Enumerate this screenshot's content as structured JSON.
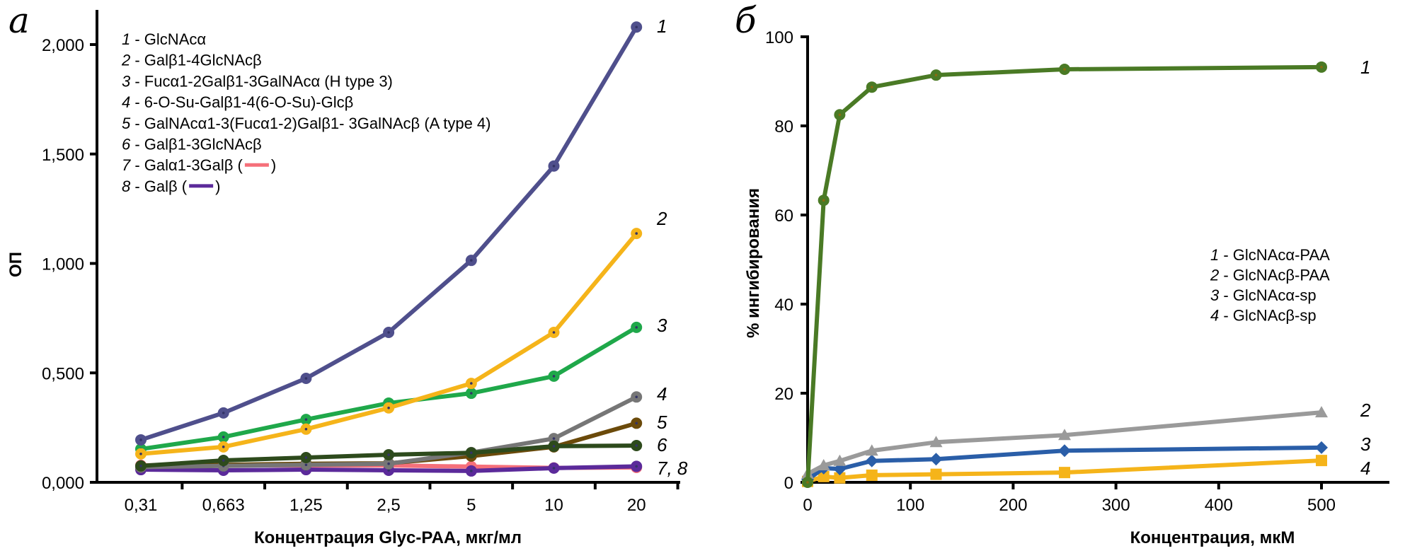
{
  "chart_data": [
    {
      "panel": "а",
      "type": "line",
      "title": "",
      "xlabel": "Концентрация Glyc-PAA, мкг/мл",
      "ylabel": "ОП",
      "categories": [
        "0,31",
        "0,663",
        "1,25",
        "2,5",
        "5",
        "10",
        "20"
      ],
      "ylim": [
        0,
        2.0
      ],
      "yticks": [
        0,
        0.5,
        1.0,
        1.5,
        2.0
      ],
      "ytick_labels": [
        "0,000",
        "0,500",
        "1,000",
        "1,500",
        "2,000"
      ],
      "grid": false,
      "legend_position": "top-left",
      "series": [
        {
          "id": "1",
          "name": "GlcNAcα",
          "color": "#4f4f8c",
          "values": [
            0.194,
            0.317,
            0.475,
            0.685,
            1.014,
            1.445,
            2.08
          ]
        },
        {
          "id": "2",
          "name": "Galβ1-4GlcNAcβ",
          "color": "#f5b41a",
          "values": [
            0.13,
            0.162,
            0.243,
            0.34,
            0.452,
            0.685,
            1.137
          ]
        },
        {
          "id": "3",
          "name": "Fucα1-2Galβ1-3GalNAcα (H type 3)",
          "color": "#1fa84a",
          "values": [
            0.152,
            0.207,
            0.287,
            0.362,
            0.407,
            0.485,
            0.708
          ]
        },
        {
          "id": "4",
          "name": "6-O-Su-Galβ1-4(6-O-Su)-Glcβ",
          "color": "#767676",
          "values": [
            0.07,
            0.075,
            0.08,
            0.085,
            0.136,
            0.2,
            0.39
          ]
        },
        {
          "id": "5",
          "name": "GalNAcα1-3(Fucα1-2)Galβ1- 3GalNAcβ (A type 4)",
          "color": "#6b4a0a",
          "values": [
            0.07,
            0.08,
            0.085,
            0.087,
            0.12,
            0.162,
            0.27
          ]
        },
        {
          "id": "6",
          "name": "Galβ1-3GlcNAcβ",
          "color": "#2d4a1c",
          "values": [
            0.075,
            0.1,
            0.113,
            0.126,
            0.135,
            0.165,
            0.168
          ]
        },
        {
          "id": "7",
          "name": "Galα1-3Galβ",
          "color": "#f5707a",
          "values": [
            0.078,
            0.078,
            0.077,
            0.077,
            0.072,
            0.066,
            0.068
          ]
        },
        {
          "id": "8",
          "name": "Galβ",
          "color": "#5b2a9a",
          "values": [
            0.058,
            0.055,
            0.058,
            0.055,
            0.052,
            0.065,
            0.073
          ]
        }
      ],
      "legend": [
        {
          "num": "1",
          "text": " - GlcNAcα"
        },
        {
          "num": "2",
          "text": " - Galβ1-4GlcNAcβ"
        },
        {
          "num": "3",
          "text": " - Fucα1-2Galβ1-3GalNAcα (H type 3)"
        },
        {
          "num": "4",
          "text": " - 6-O-Su-Galβ1-4(6-O-Su)-Glcβ"
        },
        {
          "num": "5",
          "text": " - GalNAcα1-3(Fucα1-2)Galβ1- 3GalNAcβ (A type 4)"
        },
        {
          "num": "6",
          "text": " - Galβ1-3GlcNAcβ"
        },
        {
          "num": "7",
          "text": " - Galα1-3Galβ (",
          "swatch": "#f5707a",
          "after": ")"
        },
        {
          "num": "8",
          "text": " - Galβ (",
          "swatch": "#5b2a9a",
          "after": ")"
        }
      ],
      "series_tags": [
        {
          "text": "1",
          "series": "1"
        },
        {
          "text": "2",
          "series": "2"
        },
        {
          "text": "3",
          "series": "3"
        },
        {
          "text": "4",
          "series": "4"
        },
        {
          "text": "5",
          "series": "5"
        },
        {
          "text": "6",
          "series": "6"
        },
        {
          "text": "7, 8",
          "series": "8"
        }
      ]
    },
    {
      "panel": "б",
      "type": "line",
      "title": "",
      "xlabel": "Концентрация, мкМ",
      "ylabel": "% ингибирования",
      "x": [
        0,
        15.625,
        31.25,
        62.5,
        125,
        250,
        500
      ],
      "xlim": [
        0,
        550
      ],
      "xticks": [
        0,
        100,
        200,
        300,
        400,
        500
      ],
      "ylim": [
        0,
        100
      ],
      "yticks": [
        0,
        20,
        40,
        60,
        80,
        100
      ],
      "grid": false,
      "legend_position": "center-right",
      "series": [
        {
          "id": "1",
          "name": "GlcNAcα-PAA",
          "color": "#4a7a25",
          "marker": "circle",
          "values": [
            0,
            63.3,
            82.5,
            88.7,
            91.4,
            92.7,
            93.2
          ]
        },
        {
          "id": "2",
          "name": "GlcNAcβ-PAA",
          "color": "#9a9a9a",
          "marker": "triangle",
          "values": [
            1.9,
            3.8,
            4.8,
            7.1,
            9.0,
            10.6,
            15.7
          ]
        },
        {
          "id": "3",
          "name": "GlcNAcα-sp",
          "color": "#2a5ea8",
          "marker": "diamond",
          "values": [
            0.6,
            3.2,
            3.0,
            4.8,
            5.2,
            7.1,
            7.8
          ]
        },
        {
          "id": "4",
          "name": "GlcNAcβ-sp",
          "color": "#f5b41a",
          "marker": "square",
          "values": [
            0.2,
            1.3,
            1.0,
            1.6,
            1.8,
            2.2,
            4.9
          ]
        }
      ],
      "legend": [
        {
          "num": "1",
          "text": " - GlcNAcα-PAA"
        },
        {
          "num": "2",
          "text": " - GlcNAcβ-PAA"
        },
        {
          "num": "3",
          "text": " - GlcNAcα-sp"
        },
        {
          "num": "4",
          "text": " - GlcNAcβ-sp"
        }
      ],
      "series_tags": [
        {
          "text": "1",
          "series": "1"
        },
        {
          "text": "2",
          "series": "2"
        },
        {
          "text": "3",
          "series": "3"
        },
        {
          "text": "4",
          "series": "4"
        }
      ]
    }
  ]
}
